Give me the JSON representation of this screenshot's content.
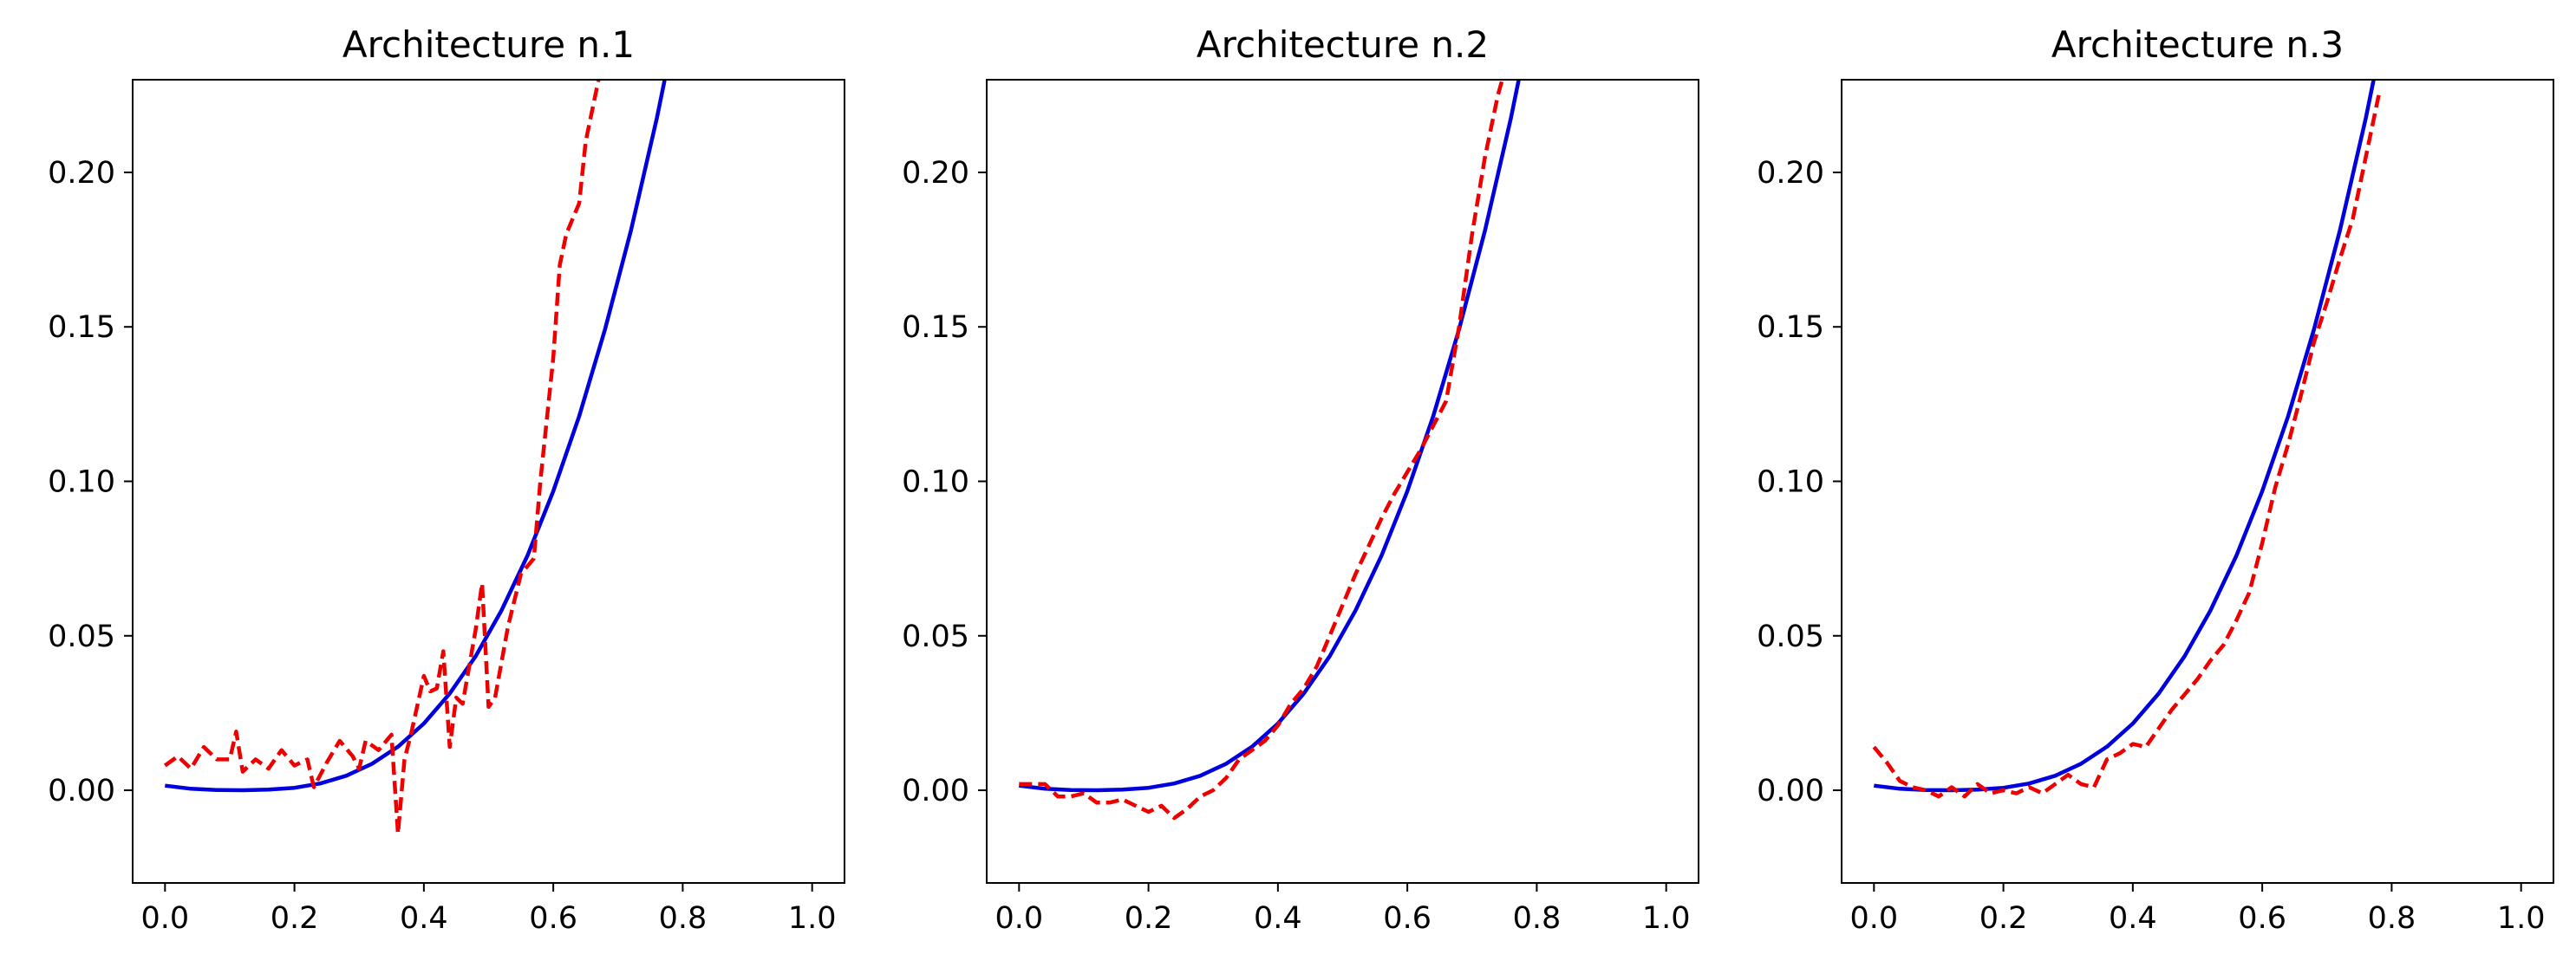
{
  "chart_data": [
    {
      "type": "line",
      "title": "Architecture n.1",
      "xlabel": "",
      "ylabel": "",
      "xlim": [
        -0.05,
        1.05
      ],
      "ylim": [
        -0.03,
        0.23
      ],
      "xticks": [
        0.0,
        0.2,
        0.4,
        0.6,
        0.8,
        1.0
      ],
      "xtick_labels": [
        "0.0",
        "0.2",
        "0.4",
        "0.6",
        "0.8",
        "1.0"
      ],
      "yticks": [
        0.0,
        0.05,
        0.1,
        0.15,
        0.2
      ],
      "ytick_labels": [
        "0.00",
        "0.05",
        "0.10",
        "0.15",
        "0.20"
      ],
      "grid": false,
      "series": [
        {
          "color": "#0000dd",
          "style": "solid",
          "x": [
            0.0,
            0.04,
            0.08,
            0.12,
            0.16,
            0.2,
            0.24,
            0.28,
            0.32,
            0.36,
            0.4,
            0.44,
            0.48,
            0.52,
            0.56,
            0.6,
            0.64,
            0.68,
            0.72,
            0.76,
            0.8
          ],
          "y": [
            0.0015,
            0.0005,
            0.0001,
            0.0,
            0.0002,
            0.0008,
            0.0022,
            0.0047,
            0.0086,
            0.0141,
            0.0216,
            0.0313,
            0.0434,
            0.0582,
            0.0759,
            0.0968,
            0.1211,
            0.1492,
            0.1812,
            0.2176,
            0.2585
          ]
        },
        {
          "color": "#ee0000",
          "style": "dashed",
          "x": [
            0.0,
            0.02,
            0.04,
            0.06,
            0.08,
            0.1,
            0.11,
            0.12,
            0.14,
            0.16,
            0.18,
            0.2,
            0.22,
            0.23,
            0.25,
            0.27,
            0.29,
            0.3,
            0.31,
            0.33,
            0.35,
            0.36,
            0.37,
            0.38,
            0.4,
            0.41,
            0.42,
            0.43,
            0.44,
            0.45,
            0.46,
            0.47,
            0.48,
            0.49,
            0.5,
            0.51,
            0.53,
            0.55,
            0.57,
            0.58,
            0.6,
            0.61,
            0.62,
            0.63,
            0.64,
            0.65,
            0.66,
            0.68
          ],
          "y": [
            0.008,
            0.011,
            0.007,
            0.014,
            0.01,
            0.01,
            0.019,
            0.006,
            0.01,
            0.007,
            0.013,
            0.008,
            0.01,
            0.001,
            0.009,
            0.016,
            0.011,
            0.007,
            0.016,
            0.013,
            0.018,
            -0.014,
            0.01,
            0.018,
            0.037,
            0.032,
            0.033,
            0.045,
            0.014,
            0.03,
            0.028,
            0.04,
            0.052,
            0.067,
            0.027,
            0.03,
            0.053,
            0.07,
            0.075,
            0.1,
            0.14,
            0.17,
            0.18,
            0.185,
            0.19,
            0.21,
            0.22,
            0.24
          ]
        }
      ]
    },
    {
      "type": "line",
      "title": "Architecture n.2",
      "xlabel": "",
      "ylabel": "",
      "xlim": [
        -0.05,
        1.05
      ],
      "ylim": [
        -0.03,
        0.23
      ],
      "xticks": [
        0.0,
        0.2,
        0.4,
        0.6,
        0.8,
        1.0
      ],
      "xtick_labels": [
        "0.0",
        "0.2",
        "0.4",
        "0.6",
        "0.8",
        "1.0"
      ],
      "yticks": [
        0.0,
        0.05,
        0.1,
        0.15,
        0.2
      ],
      "ytick_labels": [
        "0.00",
        "0.05",
        "0.10",
        "0.15",
        "0.20"
      ],
      "grid": false,
      "series": [
        {
          "color": "#0000dd",
          "style": "solid",
          "x": [
            0.0,
            0.04,
            0.08,
            0.12,
            0.16,
            0.2,
            0.24,
            0.28,
            0.32,
            0.36,
            0.4,
            0.44,
            0.48,
            0.52,
            0.56,
            0.6,
            0.64,
            0.68,
            0.72,
            0.76,
            0.8
          ],
          "y": [
            0.0015,
            0.0005,
            0.0001,
            0.0,
            0.0002,
            0.0008,
            0.0022,
            0.0047,
            0.0086,
            0.0141,
            0.0216,
            0.0313,
            0.0434,
            0.0582,
            0.0759,
            0.0968,
            0.1211,
            0.1492,
            0.1812,
            0.2176,
            0.2585
          ]
        },
        {
          "color": "#ee0000",
          "style": "dashed",
          "x": [
            0.0,
            0.02,
            0.04,
            0.06,
            0.08,
            0.1,
            0.12,
            0.14,
            0.16,
            0.18,
            0.2,
            0.22,
            0.24,
            0.26,
            0.28,
            0.3,
            0.32,
            0.34,
            0.36,
            0.38,
            0.4,
            0.42,
            0.44,
            0.46,
            0.48,
            0.5,
            0.52,
            0.54,
            0.56,
            0.58,
            0.6,
            0.62,
            0.64,
            0.66,
            0.68,
            0.7,
            0.72,
            0.74,
            0.76
          ],
          "y": [
            0.002,
            0.002,
            0.002,
            -0.002,
            -0.002,
            -0.001,
            -0.004,
            -0.004,
            -0.003,
            -0.005,
            -0.007,
            -0.005,
            -0.009,
            -0.006,
            -0.002,
            0.0,
            0.004,
            0.01,
            0.013,
            0.016,
            0.021,
            0.028,
            0.033,
            0.04,
            0.05,
            0.06,
            0.07,
            0.079,
            0.088,
            0.096,
            0.103,
            0.11,
            0.118,
            0.126,
            0.15,
            0.18,
            0.205,
            0.225,
            0.24
          ]
        }
      ]
    },
    {
      "type": "line",
      "title": "Architecture n.3",
      "xlabel": "",
      "ylabel": "",
      "xlim": [
        -0.05,
        1.05
      ],
      "ylim": [
        -0.03,
        0.23
      ],
      "xticks": [
        0.0,
        0.2,
        0.4,
        0.6,
        0.8,
        1.0
      ],
      "xtick_labels": [
        "0.0",
        "0.2",
        "0.4",
        "0.6",
        "0.8",
        "1.0"
      ],
      "yticks": [
        0.0,
        0.05,
        0.1,
        0.15,
        0.2
      ],
      "ytick_labels": [
        "0.00",
        "0.05",
        "0.10",
        "0.15",
        "0.20"
      ],
      "grid": false,
      "series": [
        {
          "color": "#0000dd",
          "style": "solid",
          "x": [
            0.0,
            0.04,
            0.08,
            0.12,
            0.16,
            0.2,
            0.24,
            0.28,
            0.32,
            0.36,
            0.4,
            0.44,
            0.48,
            0.52,
            0.56,
            0.6,
            0.64,
            0.68,
            0.72,
            0.76,
            0.8
          ],
          "y": [
            0.0015,
            0.0005,
            0.0001,
            0.0,
            0.0002,
            0.0008,
            0.0022,
            0.0047,
            0.0086,
            0.0141,
            0.0216,
            0.0313,
            0.0434,
            0.0582,
            0.0759,
            0.0968,
            0.1211,
            0.1492,
            0.1812,
            0.2176,
            0.2585
          ]
        },
        {
          "color": "#ee0000",
          "style": "dashed",
          "x": [
            0.0,
            0.02,
            0.04,
            0.06,
            0.08,
            0.1,
            0.12,
            0.14,
            0.16,
            0.18,
            0.2,
            0.22,
            0.24,
            0.26,
            0.28,
            0.3,
            0.32,
            0.34,
            0.36,
            0.38,
            0.4,
            0.42,
            0.44,
            0.46,
            0.48,
            0.5,
            0.52,
            0.54,
            0.56,
            0.58,
            0.6,
            0.62,
            0.64,
            0.66,
            0.68,
            0.7,
            0.72,
            0.74,
            0.76,
            0.78
          ],
          "y": [
            0.014,
            0.009,
            0.003,
            0.001,
            0.0,
            -0.002,
            0.001,
            -0.002,
            0.002,
            -0.001,
            0.0,
            -0.001,
            0.001,
            -0.001,
            0.002,
            0.005,
            0.002,
            0.001,
            0.01,
            0.012,
            0.015,
            0.014,
            0.02,
            0.026,
            0.031,
            0.036,
            0.042,
            0.047,
            0.055,
            0.064,
            0.08,
            0.098,
            0.112,
            0.128,
            0.145,
            0.158,
            0.172,
            0.185,
            0.205,
            0.225
          ]
        }
      ]
    }
  ]
}
